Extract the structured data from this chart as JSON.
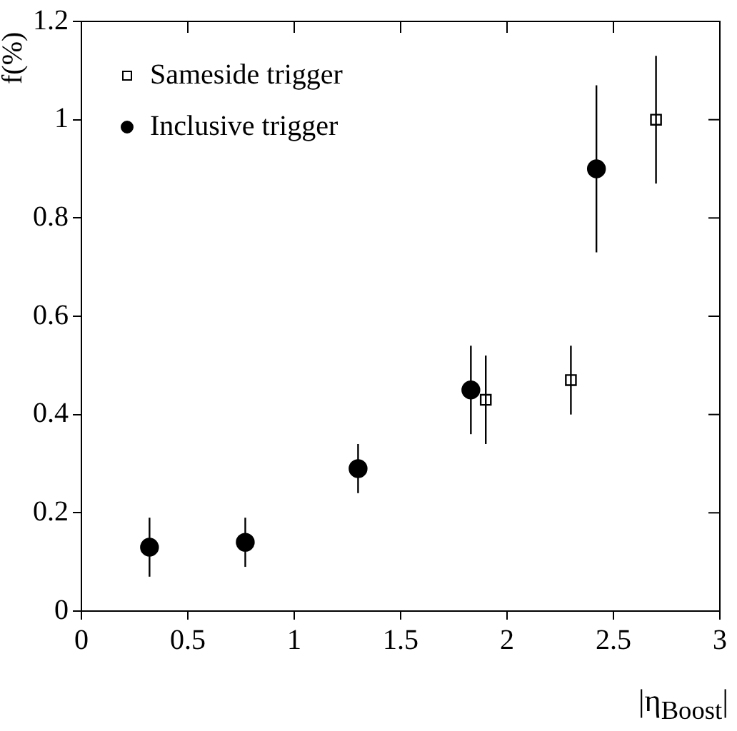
{
  "chart_data": {
    "type": "scatter",
    "xlabel": "|η$_{Boost}$|",
    "ylabel": "f(%)",
    "xlim": [
      0,
      3
    ],
    "xticks": [
      0,
      0.5,
      1,
      1.5,
      2,
      2.5,
      3
    ],
    "ylim": [
      0,
      1.2
    ],
    "yticks": [
      0,
      0.2,
      0.4,
      0.6,
      0.8,
      1,
      1.2
    ],
    "legend": "top left",
    "grid": false,
    "series": [
      {
        "name": "Sameside trigger",
        "color": "#000000",
        "marker": "square",
        "x": [
          1.9,
          2.3,
          2.7
        ],
        "values": [
          0.43,
          0.47,
          1.0
        ],
        "errors": [
          [
            0.34,
            0.52
          ],
          [
            0.4,
            0.54
          ],
          [
            0.87,
            1.13
          ]
        ]
      },
      {
        "name": "Inclusive trigger",
        "color": "#000000",
        "marker": "circle",
        "x": [
          0.32,
          0.77,
          1.3,
          1.83,
          2.42
        ],
        "values": [
          0.13,
          0.14,
          0.29,
          0.45,
          0.9
        ],
        "errors": [
          [
            0.07,
            0.19
          ],
          [
            0.09,
            0.19
          ],
          [
            0.24,
            0.34
          ],
          [
            0.36,
            0.54
          ],
          [
            0.73,
            1.07
          ]
        ]
      }
    ]
  }
}
